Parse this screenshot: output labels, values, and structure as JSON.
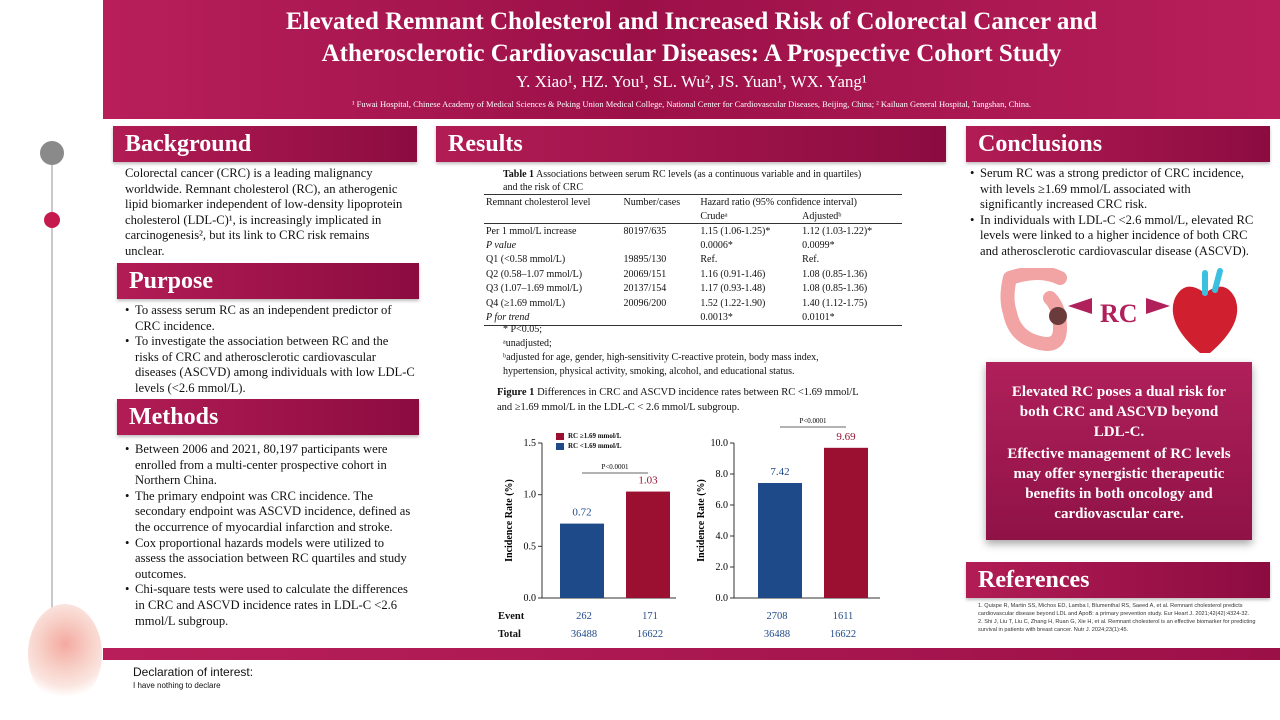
{
  "header": {
    "title_line1": "Elevated Remnant Cholesterol and Increased Risk of Colorectal Cancer and",
    "title_line2": "Atherosclerotic Cardiovascular Diseases: A Prospective Cohort Study",
    "authors": "Y. Xiao¹, HZ. You¹, SL. Wu², JS. Yuan¹, WX. Yang¹",
    "affiliations": "¹ Fuwai Hospital, Chinese Academy of Medical Sciences & Peking Union Medical College, National Center for Cardiovascular Diseases, Beijing, China; ² Kailuan General Hospital, Tangshan, China."
  },
  "background": {
    "heading": "Background",
    "text": "Colorectal cancer (CRC) is a leading malignancy worldwide. Remnant cholesterol (RC), an atherogenic lipid biomarker independent of low-density lipoprotein cholesterol (LDL-C)¹, is increasingly implicated in carcinogenesis², but its link to CRC risk remains unclear."
  },
  "purpose": {
    "heading": "Purpose",
    "items": [
      "To assess serum RC as an independent predictor of CRC incidence.",
      "To investigate the association between RC and the risks of CRC and atherosclerotic cardiovascular diseases (ASCVD) among individuals with low LDL-C levels (<2.6 mmol/L)."
    ]
  },
  "methods": {
    "heading": "Methods",
    "items": [
      "Between 2006 and 2021, 80,197 participants were enrolled from a multi-center prospective cohort in Northern China.",
      "The primary endpoint was CRC incidence. The secondary endpoint was ASCVD incidence, defined as the occurrence of myocardial infarction and stroke.",
      "Cox proportional hazards models were utilized to assess the association between RC quartiles and study outcomes.",
      "Chi-square tests were used to calculate the differences in CRC and ASCVD incidence rates in LDL-C <2.6 mmol/L subgroup."
    ]
  },
  "results": {
    "heading": "Results",
    "table_title_bold": "Table 1",
    "table_title_rest": " Associations between serum RC levels (as a continuous variable and in quartiles) and the risk of CRC",
    "col_rc": "Remnant cholesterol level",
    "col_cases": "Number/cases",
    "col_hr": "Hazard ratio (95% confidence interval)",
    "col_crude": "Crudeᵃ",
    "col_adjusted": "Adjustedᵇ",
    "rows": [
      {
        "label": "Per 1 mmol/L increase",
        "cases": "80197/635",
        "crude": "1.15 (1.06-1.25)*",
        "adjusted": "1.12 (1.03-1.22)*",
        "italic": false
      },
      {
        "label": "P value",
        "cases": "",
        "crude": "0.0006*",
        "adjusted": "0.0099*",
        "italic": true
      },
      {
        "label": "Q1 (<0.58 mmol/L)",
        "cases": "19895/130",
        "crude": "Ref.",
        "adjusted": "Ref.",
        "italic": false
      },
      {
        "label": "Q2 (0.58–1.07 mmol/L)",
        "cases": "20069/151",
        "crude": "1.16 (0.91-1.46)",
        "adjusted": "1.08 (0.85-1.36)",
        "italic": false
      },
      {
        "label": "Q3 (1.07–1.69 mmol/L)",
        "cases": "20137/154",
        "crude": "1.17 (0.93-1.48)",
        "adjusted": "1.08 (0.85-1.36)",
        "italic": false
      },
      {
        "label": "Q4 (≥1.69 mmol/L)",
        "cases": "20096/200",
        "crude": "1.52 (1.22-1.90)",
        "adjusted": "1.40 (1.12-1.75)",
        "italic": false
      },
      {
        "label": "P for trend",
        "cases": "",
        "crude": "0.0013*",
        "adjusted": "0.0101*",
        "italic": true
      }
    ],
    "note1": "* P<0.05;",
    "note2": "ᵃunadjusted;",
    "note3": "ᵇadjusted for age, gender, high-sensitivity C-reactive protein, body mass index,",
    "note4": "hypertension, physical activity, smoking, alcohol, and educational status.",
    "figure_caption_bold": "Figure 1",
    "figure_caption_line1": " Differences in CRC and ASCVD incidence rates between RC <1.69 mmol/L",
    "figure_caption_line2": "and ≥1.69 mmol/L in the LDL-C < 2.6 mmol/L subgroup.",
    "legend": [
      {
        "label": "RC ≥1.69 mmol/L",
        "color": "#9b1030"
      },
      {
        "label": "RC <1.69 mmol/L",
        "color": "#1f4a8a"
      }
    ],
    "event_label": "Event",
    "total_label": "Total",
    "crc_events": [
      "262",
      "171"
    ],
    "crc_totals": [
      "36488",
      "16622"
    ],
    "ascvd_events": [
      "2708",
      "1611"
    ],
    "ascvd_totals": [
      "36488",
      "16622"
    ]
  },
  "chart_data": [
    {
      "type": "bar",
      "categories": [
        "RC <1.69 mmol/L",
        "RC ≥1.69 mmol/L"
      ],
      "values": [
        0.72,
        1.03
      ],
      "colors": [
        "#1f4a8a",
        "#9b1030"
      ],
      "ylabel": "Incidence Rate (%)",
      "ylim": [
        0,
        1.5
      ],
      "yticks": [
        "0.0",
        "0.5",
        "1.0",
        "1.5"
      ],
      "annotation": "P<0.0001",
      "value_labels": [
        "0.72",
        "1.03"
      ]
    },
    {
      "type": "bar",
      "categories": [
        "RC <1.69 mmol/L",
        "RC ≥1.69 mmol/L"
      ],
      "values": [
        7.42,
        9.69
      ],
      "colors": [
        "#1f4a8a",
        "#9b1030"
      ],
      "ylabel": "Incidence Rate (%)",
      "ylim": [
        0,
        10
      ],
      "yticks": [
        "0.0",
        "2.0",
        "4.0",
        "6.0",
        "8.0",
        "10.0"
      ],
      "annotation": "P<0.0001",
      "value_labels": [
        "7.42",
        "9.69"
      ]
    }
  ],
  "conclusions": {
    "heading": "Conclusions",
    "items": [
      "Serum RC was a strong predictor of CRC incidence, with levels ≥1.69 mmol/L associated with significantly increased CRC risk.",
      "In individuals with LDL-C <2.6 mmol/L, elevated RC levels were linked to a higher incidence of both CRC and atherosclerotic cardiovascular disease (ASCVD)."
    ],
    "illustration_label": "RC"
  },
  "callout": {
    "line1": "Elevated RC poses a dual risk for both CRC and ASCVD beyond LDL-C.",
    "line2": "Effective management of RC levels may offer synergistic therapeutic benefits in both oncology and cardiovascular care."
  },
  "references": {
    "heading": "References",
    "ref1": "1. Quispe R, Martin SS, Michos ED, Lamba I, Blumenthal RS, Saeed A, et al. Remnant cholesterol predicts cardiovascular disease beyond LDL and ApoB: a primary prevention study. Eur Heart J. 2021;42(42):4324-32.",
    "ref2": "2. Shi J, Liu T, Liu C, Zhang H, Ruan G, Xie H, et al. Remnant cholesterol is an effective biomarker for predicting survival in patients with breast cancer. Nutr J. 2024;23(1):45."
  },
  "declaration": {
    "title": "Declaration of interest:",
    "text": "I have nothing to declare"
  }
}
